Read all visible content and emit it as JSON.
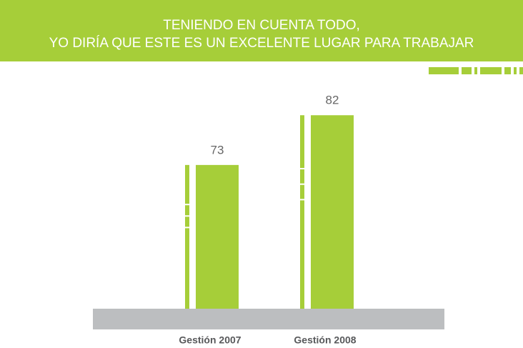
{
  "chart_data": {
    "type": "bar",
    "title": [
      "TENIENDO EN CUENTA TODO,",
      "YO DIRÍA QUE ESTE ES UN EXCELENTE LUGAR PARA TRABAJAR"
    ],
    "categories": [
      "Gestión 2007",
      "Gestión 2008"
    ],
    "values": [
      73,
      82
    ],
    "color": "#a6ce39",
    "ylim": [
      47,
      100
    ]
  }
}
